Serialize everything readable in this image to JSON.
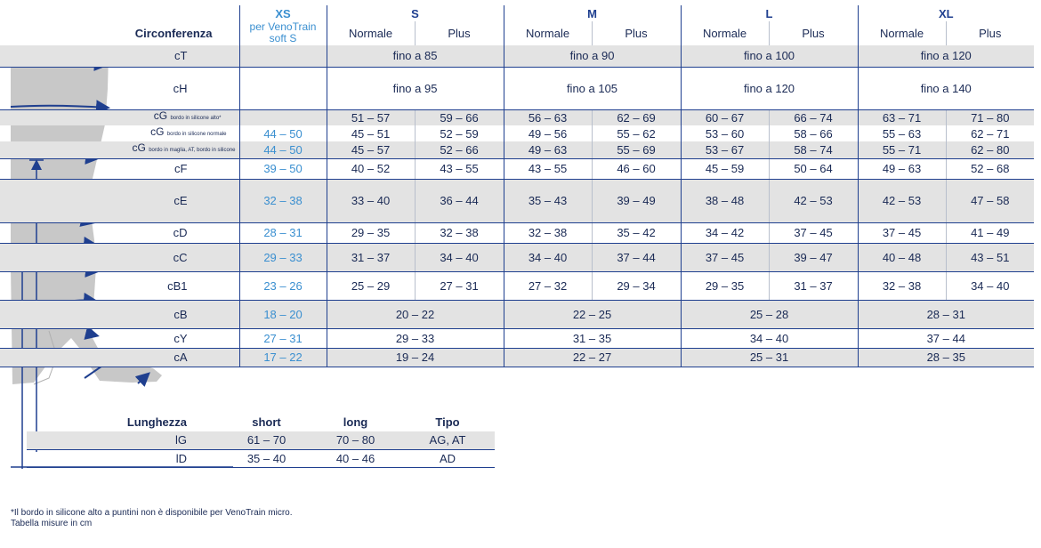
{
  "header": {
    "circonferenza_label": "Circonferenza",
    "sizes": [
      {
        "name": "XS",
        "sub": "per VenoTrain soft S"
      },
      {
        "name": "S"
      },
      {
        "name": "M"
      },
      {
        "name": "L"
      },
      {
        "name": "XL"
      }
    ],
    "normale": "Normale",
    "plus": "Plus"
  },
  "rows": [
    {
      "label": "cT",
      "xs": "",
      "vals": [
        "fino a 85",
        "fino a 90",
        "fino a 100",
        "fino a 120"
      ]
    },
    {
      "label": "cH",
      "xs": "",
      "vals": [
        "fino a 95",
        "fino a 105",
        "fino a 120",
        "fino a 140"
      ]
    },
    {
      "label_main": "cG",
      "label_small": "bordo in silicone alto*",
      "xs": "",
      "vals": [
        "51 – 57",
        "59 – 66",
        "56 – 63",
        "62 – 69",
        "60 – 67",
        "66 – 74",
        "63 – 71",
        "71 – 80"
      ]
    },
    {
      "label_main": "cG",
      "label_small": "bordo in silicone normale",
      "xs": "44 – 50",
      "vals": [
        "45 – 51",
        "52 – 59",
        "49 – 56",
        "55 – 62",
        "53 – 60",
        "58 – 66",
        "55 – 63",
        "62 – 71"
      ]
    },
    {
      "label_main": "cG",
      "label_small": "bordo in maglia, AT, bordo in silicone",
      "xs": "44 – 50",
      "vals": [
        "45 – 57",
        "52 – 66",
        "49 – 63",
        "55 – 69",
        "53 – 67",
        "58 – 74",
        "55 – 71",
        "62 – 80"
      ]
    },
    {
      "label": "cF",
      "xs": "39 – 50",
      "vals": [
        "40 – 52",
        "43 – 55",
        "43 – 55",
        "46 – 60",
        "45 – 59",
        "50 – 64",
        "49 – 63",
        "52 – 68"
      ]
    },
    {
      "label": "cE",
      "xs": "32 – 38",
      "vals": [
        "33 – 40",
        "36 – 44",
        "35 – 43",
        "39 – 49",
        "38 – 48",
        "42 – 53",
        "42 – 53",
        "47 – 58"
      ]
    },
    {
      "label": "cD",
      "xs": "28 – 31",
      "vals": [
        "29 – 35",
        "32 – 38",
        "32 – 38",
        "35 – 42",
        "34 – 42",
        "37 – 45",
        "37 – 45",
        "41 – 49"
      ]
    },
    {
      "label": "cC",
      "xs": "29 – 33",
      "vals": [
        "31 – 37",
        "34 – 40",
        "34 – 40",
        "37 – 44",
        "37 – 45",
        "39 – 47",
        "40 – 48",
        "43 – 51"
      ]
    },
    {
      "label": "cB1",
      "xs": "23 – 26",
      "vals": [
        "25 – 29",
        "27 – 31",
        "27 – 32",
        "29 – 34",
        "29 – 35",
        "31 – 37",
        "32 – 38",
        "34 – 40"
      ]
    },
    {
      "label": "cB",
      "xs": "18 – 20",
      "vals": [
        "20 – 22",
        "22 – 25",
        "25 – 28",
        "28 – 31"
      ]
    },
    {
      "label": "cY",
      "xs": "27 – 31",
      "vals": [
        "29 – 33",
        "31 – 35",
        "34 – 40",
        "37 – 44"
      ]
    },
    {
      "label": "cA",
      "xs": "17 – 22",
      "vals": [
        "19 – 24",
        "22 – 27",
        "25 – 31",
        "28 – 35"
      ]
    }
  ],
  "length_table": {
    "headers": [
      "Lunghezza",
      "short",
      "long",
      "Tipo"
    ],
    "rows": [
      [
        "lG",
        "61 – 70",
        "70 – 80",
        "AG, AT"
      ],
      [
        "lD",
        "35 – 40",
        "40 – 46",
        "AD"
      ]
    ]
  },
  "footnotes": [
    "*Il bordo in silicone alto a puntini non è disponibile per VenoTrain micro.",
    "Tabella misure in cm"
  ],
  "colors": {
    "navy": "#1f3f8f",
    "xs_blue": "#3a8fd0",
    "row_gray": "#e3e3e3",
    "leg_gray": "#c9c9c9"
  }
}
